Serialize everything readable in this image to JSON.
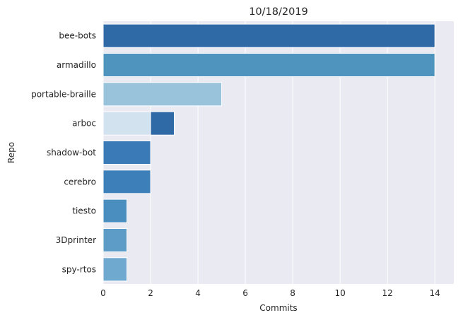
{
  "chart_data": {
    "type": "bar",
    "orientation": "horizontal",
    "title": "10/18/2019",
    "xlabel": "Commits",
    "ylabel": "Repo",
    "xlim": [
      0,
      14.8
    ],
    "xticks": [
      0,
      2,
      4,
      6,
      8,
      10,
      12,
      14
    ],
    "grid": true,
    "categories": [
      "bee-bots",
      "armadillo",
      "portable-braille",
      "arboc",
      "shadow-bot",
      "cerebro",
      "tiesto",
      "3Dprinter",
      "spy-rtos"
    ],
    "bars": [
      {
        "category": "bee-bots",
        "start": 0,
        "value": 14,
        "color": "#2f6aa7"
      },
      {
        "category": "armadillo",
        "start": 0,
        "value": 14,
        "color": "#4f94bf"
      },
      {
        "category": "portable-braille",
        "start": 0,
        "value": 5,
        "color": "#98c3da"
      },
      {
        "category": "arboc",
        "start": 0,
        "value": 2,
        "color": "#d3e2ef"
      },
      {
        "category": "arboc",
        "start": 2,
        "value": 1,
        "color": "#2f6aa7"
      },
      {
        "category": "shadow-bot",
        "start": 0,
        "value": 2,
        "color": "#3a7bb7"
      },
      {
        "category": "cerebro",
        "start": 0,
        "value": 2,
        "color": "#3d80b9"
      },
      {
        "category": "tiesto",
        "start": 0,
        "value": 1,
        "color": "#4a8ec0"
      },
      {
        "category": "3Dprinter",
        "start": 0,
        "value": 1,
        "color": "#5c9cc6"
      },
      {
        "category": "spy-rtos",
        "start": 0,
        "value": 1,
        "color": "#70a9cf"
      }
    ]
  }
}
